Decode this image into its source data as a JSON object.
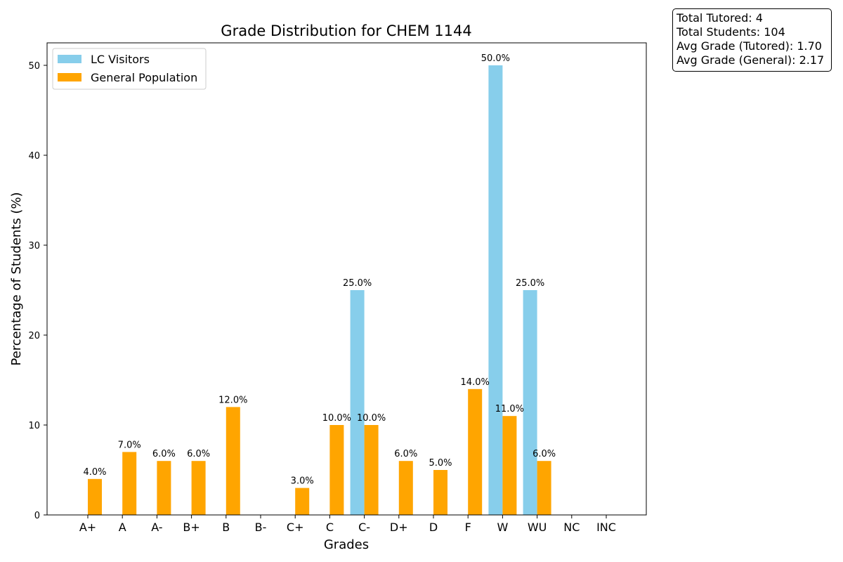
{
  "chart_data": {
    "type": "bar",
    "title": "Grade Distribution for CHEM 1144",
    "xlabel": "Grades",
    "ylabel": "Percentage of Students (%)",
    "categories": [
      "A+",
      "A",
      "A-",
      "B+",
      "B",
      "B-",
      "C+",
      "C",
      "C-",
      "D+",
      "D",
      "F",
      "W",
      "WU",
      "NC",
      "INC"
    ],
    "series": [
      {
        "name": "LC Visitors",
        "color": "#87ceeb",
        "values": [
          0,
          0,
          0,
          0,
          0,
          0,
          0,
          0,
          25,
          0,
          0,
          0,
          50,
          25,
          0,
          0
        ]
      },
      {
        "name": "General Population",
        "color": "#ffa500",
        "values": [
          4,
          7,
          6,
          6,
          12,
          0,
          3,
          10,
          10,
          6,
          5,
          14,
          11,
          6,
          0,
          0
        ]
      }
    ],
    "ylim": [
      0,
      52.5
    ],
    "yticks": [
      0,
      10,
      20,
      30,
      40,
      50
    ],
    "grid": false,
    "legend": "top-left"
  },
  "stats": {
    "total_tutored": "Total Tutored: 4",
    "total_students": "Total Students: 104",
    "avg_tutored": "Avg Grade (Tutored): 1.70",
    "avg_general": "Avg Grade (General): 2.17"
  }
}
